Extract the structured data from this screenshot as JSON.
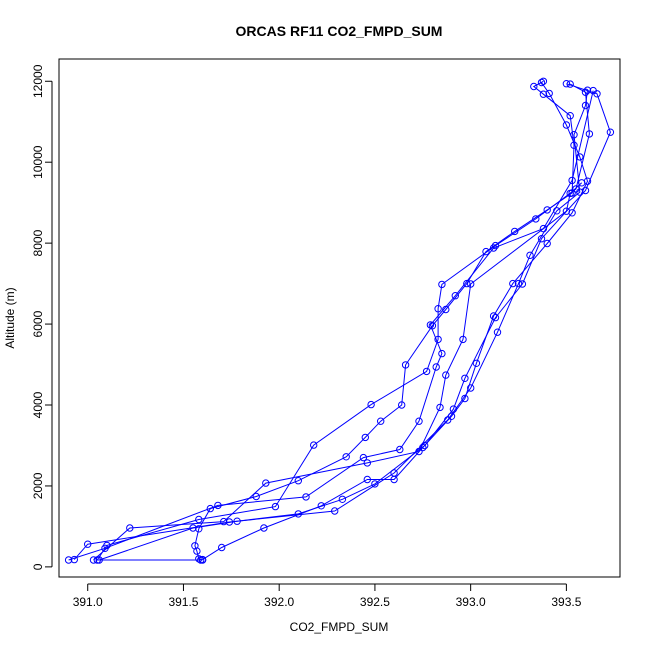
{
  "chart_data": {
    "type": "line",
    "title": "ORCAS RF11 CO2_FMPD_SUM",
    "xlabel": "CO2_FMPD_SUM",
    "ylabel": "Altitude (m)",
    "xlim": [
      390.85,
      393.78
    ],
    "ylim": [
      -250,
      12550
    ],
    "xticks": [
      391.0,
      391.5,
      392.0,
      392.5,
      393.0,
      393.5
    ],
    "xtick_labels": [
      "391.0",
      "391.5",
      "392.0",
      "392.5",
      "393.0",
      "393.5"
    ],
    "yticks": [
      0,
      2000,
      4000,
      6000,
      8000,
      10000,
      12000
    ],
    "ytick_labels": [
      "0",
      "2000",
      "4000",
      "6000",
      "8000",
      "10000",
      "12000"
    ],
    "grid": false,
    "legend": "none",
    "color": "#0000ff",
    "marker": "open-circle",
    "series": [
      {
        "points": [
          [
            391.6,
            170
          ],
          [
            391.58,
            200
          ],
          [
            391.57,
            390
          ],
          [
            391.56,
            520
          ],
          [
            391.58,
            940
          ],
          [
            391.64,
            1440
          ],
          [
            391.88,
            1740
          ],
          [
            392.1,
            2130
          ],
          [
            392.35,
            2720
          ],
          [
            392.45,
            3200
          ],
          [
            392.53,
            3600
          ],
          [
            392.64,
            4000
          ],
          [
            392.66,
            4990
          ],
          [
            392.8,
            5960
          ],
          [
            392.87,
            6360
          ],
          [
            392.98,
            7000
          ],
          [
            393.08,
            7790
          ],
          [
            393.23,
            8290
          ],
          [
            393.4,
            8820
          ],
          [
            393.53,
            9240
          ],
          [
            393.54,
            10420
          ],
          [
            393.52,
            11150
          ],
          [
            393.38,
            11680
          ],
          [
            393.33,
            11870
          ],
          [
            393.38,
            12000
          ]
        ]
      },
      {
        "points": [
          [
            393.37,
            11970
          ],
          [
            393.41,
            11700
          ],
          [
            393.5,
            10920
          ],
          [
            393.57,
            10130
          ],
          [
            393.61,
            9530
          ],
          [
            393.53,
            8750
          ],
          [
            393.4,
            7990
          ],
          [
            393.22,
            7000
          ],
          [
            393.12,
            6200
          ],
          [
            393.03,
            5030
          ],
          [
            392.97,
            4160
          ],
          [
            392.9,
            3720
          ],
          [
            392.75,
            2950
          ],
          [
            392.6,
            2160
          ],
          [
            392.46,
            2160
          ],
          [
            392.22,
            1510
          ],
          [
            391.92,
            960
          ],
          [
            391.7,
            480
          ],
          [
            391.6,
            180
          ]
        ]
      },
      {
        "points": [
          [
            391.59,
            170
          ],
          [
            391.05,
            170
          ],
          [
            391.1,
            530
          ],
          [
            391.58,
            1170
          ],
          [
            391.98,
            1490
          ],
          [
            392.18,
            3010
          ],
          [
            392.48,
            4010
          ],
          [
            392.77,
            4830
          ],
          [
            392.83,
            5620
          ],
          [
            392.83,
            6380
          ],
          [
            392.85,
            6980
          ],
          [
            393.13,
            7940
          ],
          [
            393.34,
            8600
          ],
          [
            393.55,
            9340
          ],
          [
            393.62,
            10700
          ],
          [
            393.6,
            11730
          ],
          [
            393.52,
            11930
          ]
        ]
      },
      {
        "points": [
          [
            393.5,
            11940
          ],
          [
            393.66,
            11690
          ],
          [
            393.73,
            10740
          ],
          [
            393.6,
            9300
          ],
          [
            393.37,
            8110
          ],
          [
            393.27,
            6990
          ],
          [
            393.13,
            6160
          ],
          [
            392.97,
            4660
          ],
          [
            392.91,
            3900
          ],
          [
            392.76,
            3000
          ],
          [
            392.5,
            2050
          ],
          [
            392.33,
            1670
          ],
          [
            392.1,
            1310
          ],
          [
            391.78,
            1130
          ],
          [
            391.55,
            960
          ],
          [
            391.06,
            170
          ]
        ]
      },
      {
        "points": [
          [
            390.9,
            170
          ],
          [
            391.09,
            460
          ],
          [
            391.68,
            1520
          ],
          [
            392.14,
            1730
          ],
          [
            392.44,
            2700
          ],
          [
            392.63,
            2900
          ],
          [
            392.73,
            3600
          ],
          [
            392.82,
            4940
          ],
          [
            392.85,
            5270
          ],
          [
            392.79,
            5980
          ],
          [
            392.92,
            6700
          ],
          [
            393.12,
            7880
          ],
          [
            393.38,
            8360
          ],
          [
            393.53,
            9550
          ],
          [
            393.64,
            11770
          ]
        ]
      },
      {
        "points": [
          [
            393.61,
            11780
          ],
          [
            393.6,
            11400
          ],
          [
            393.54,
            10680
          ],
          [
            393.57,
            9260
          ],
          [
            393.45,
            8800
          ],
          [
            393.31,
            7700
          ],
          [
            393.25,
            7000
          ],
          [
            393.14,
            5800
          ],
          [
            393.0,
            4420
          ],
          [
            392.88,
            3630
          ],
          [
            392.6,
            2320
          ],
          [
            392.29,
            1380
          ],
          [
            391.74,
            1110
          ],
          [
            391.0,
            560
          ],
          [
            390.93,
            180
          ]
        ]
      },
      {
        "points": [
          [
            391.03,
            170
          ],
          [
            391.22,
            960
          ],
          [
            391.71,
            1120
          ],
          [
            391.93,
            2070
          ],
          [
            392.46,
            2570
          ],
          [
            392.73,
            2850
          ],
          [
            392.84,
            3940
          ],
          [
            392.87,
            4740
          ],
          [
            392.96,
            5620
          ],
          [
            393.0,
            6990
          ],
          [
            393.5,
            8790
          ],
          [
            393.52,
            9230
          ],
          [
            393.58,
            9490
          ]
        ]
      }
    ]
  }
}
